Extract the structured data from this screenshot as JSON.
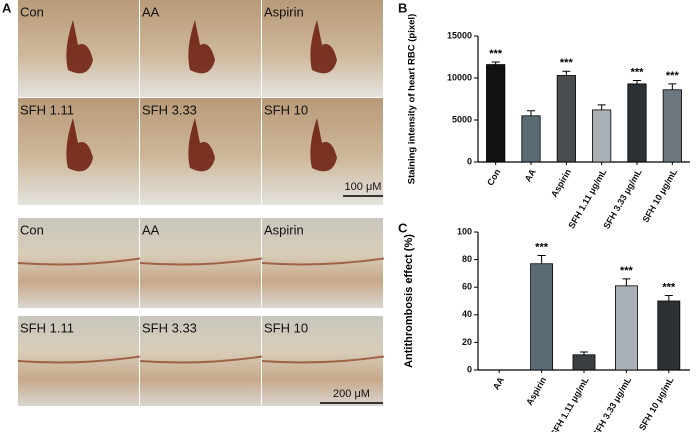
{
  "panel_labels": [
    "A",
    "B",
    "C"
  ],
  "heart_images": {
    "labels": [
      "Con",
      "AA",
      "Aspirin",
      "SFH 1.11",
      "SFH 3.33",
      "SFH 10"
    ],
    "scale_bar": "100 μM"
  },
  "tail_images": {
    "labels": [
      "Con",
      "AA",
      "Aspirin",
      "SFH 1.11",
      "SFH 3.33",
      "SFH 10"
    ],
    "scale_bar": "200 μM"
  },
  "chart_data": [
    {
      "type": "bar",
      "ylabel": "Staining intensity of heart RBC (pixel)",
      "categories": [
        "Con",
        "AA",
        "Aspirin",
        "SFH 1.11 μg/mL",
        "SFH 3.33 μg/mL",
        "SFH 10 μg/mL"
      ],
      "values": [
        11600,
        5500,
        10300,
        6200,
        9300,
        8600
      ],
      "errors": [
        300,
        600,
        500,
        600,
        400,
        700
      ],
      "significance": [
        "***",
        null,
        "***",
        null,
        "***",
        "***"
      ],
      "colors": [
        "#111111",
        "#5b6b76",
        "#4a4d50",
        "#a9b1b6",
        "#2b3134",
        "#6c7780"
      ],
      "ylim": [
        0,
        15000
      ],
      "yticks": [
        0,
        5000,
        10000,
        15000
      ]
    },
    {
      "type": "bar",
      "ylabel": "Antithrombosis effect (%)",
      "categories": [
        "AA",
        "Aspirin",
        "SFH 1.11 μg/mL",
        "SFH 3.33 μg/mL",
        "SFH 10 μg/mL"
      ],
      "values": [
        0,
        77,
        11,
        61,
        50
      ],
      "errors": [
        0,
        6,
        2,
        5,
        4
      ],
      "significance": [
        null,
        "***",
        null,
        "***",
        "***"
      ],
      "colors": [
        "#5b6b76",
        "#5b6b76",
        "#3a3e41",
        "#a9b1b6",
        "#2b3134"
      ],
      "ylim": [
        0,
        100
      ],
      "yticks": [
        0,
        20,
        40,
        60,
        80,
        100
      ]
    }
  ]
}
